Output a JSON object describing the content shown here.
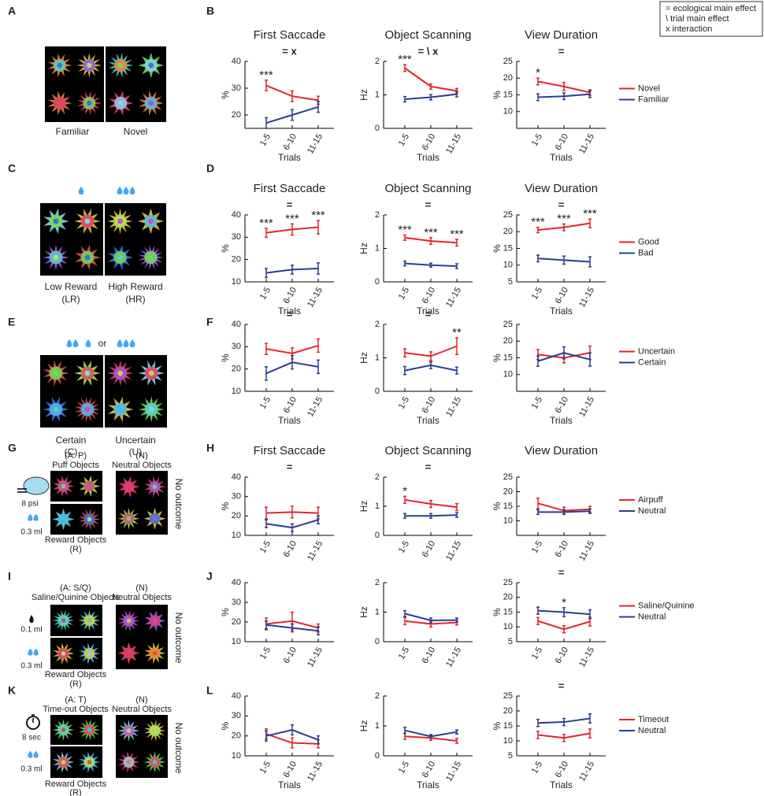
{
  "legend_box": [
    "= ecological main effect",
    "\\ trial main effect",
    "x interaction"
  ],
  "chart_letters": [
    "B",
    "D",
    "F",
    "H",
    "J",
    "L"
  ],
  "left_panels": [
    {
      "letter": "A",
      "labels": [
        "Familiar",
        "Novel"
      ]
    },
    {
      "letter": "C",
      "labels": [
        "Low Reward",
        "(LR)",
        "High Reward",
        "(HR)"
      ]
    },
    {
      "letter": "E",
      "labels": [
        "Certain",
        "(C)",
        "or",
        "Uncertain",
        "(U)"
      ]
    },
    {
      "letter": "G",
      "labels": [
        "(A: P)",
        "Puff Objects",
        "(N)",
        "Neutral Objects",
        "8 psi",
        "0.3 ml",
        "Reward Objects",
        "(R)",
        "No outcome"
      ]
    },
    {
      "letter": "I",
      "labels": [
        "(A: S/Q)",
        "Saline/Quinine Objects",
        "(N)",
        "Neutral Objects",
        "0.1 ml",
        "0.3 ml",
        "Reward Objects",
        "(R)",
        "No outcome"
      ]
    },
    {
      "letter": "K",
      "labels": [
        "(A: T)",
        "Time-out Objects",
        "(N)",
        "Neutral Objects",
        "8 sec",
        "0.3 ml",
        "Reward Objects",
        "(R)",
        "No outcome"
      ]
    }
  ],
  "chart_data": [
    {
      "type": "line",
      "title": "First Saccade",
      "annotation": "= x",
      "xlabel": "Trials",
      "ylabel": "%",
      "categories": [
        "1-5",
        "6-10",
        "11-15"
      ],
      "ylim": [
        15,
        40
      ],
      "yticks": [
        20,
        30,
        40
      ],
      "stars": [
        "***",
        null,
        null
      ],
      "series": [
        {
          "color": "#e3262b",
          "values": [
            31,
            27,
            25.5
          ],
          "errors": [
            2,
            2,
            1.5
          ]
        },
        {
          "color": "#2b3d91",
          "values": [
            17,
            20,
            23
          ],
          "errors": [
            2,
            2,
            2
          ]
        }
      ]
    },
    {
      "type": "line",
      "title": "Object Scanning",
      "annotation": "= \\ x",
      "xlabel": "Trials",
      "ylabel": "Hz",
      "categories": [
        "1-5",
        "6-10",
        "11-15"
      ],
      "ylim": [
        0,
        2
      ],
      "yticks": [
        0,
        1,
        2
      ],
      "stars": [
        "***",
        null,
        null
      ],
      "series": [
        {
          "color": "#e3262b",
          "values": [
            1.8,
            1.25,
            1.12
          ],
          "errors": [
            0.1,
            0.08,
            0.07
          ]
        },
        {
          "color": "#2b3d91",
          "values": [
            0.87,
            0.93,
            1.02
          ],
          "errors": [
            0.08,
            0.08,
            0.08
          ]
        }
      ]
    },
    {
      "type": "line",
      "title": "View Duration",
      "annotation": "=",
      "xlabel": "Trials",
      "ylabel": "%",
      "categories": [
        "1-5",
        "6-10",
        "11-15"
      ],
      "ylim": [
        5,
        25
      ],
      "yticks": [
        10,
        15,
        20,
        25
      ],
      "stars": [
        "*",
        null,
        null
      ],
      "series": [
        {
          "name": "Novel",
          "color": "#e3262b",
          "values": [
            19,
            17.5,
            15.7
          ],
          "errors": [
            1,
            1.2,
            0.8
          ]
        },
        {
          "name": "Familiar",
          "color": "#2b3d91",
          "values": [
            14.3,
            14.6,
            15.2
          ],
          "errors": [
            1,
            1,
            1
          ]
        }
      ]
    },
    {
      "type": "line",
      "title": "First Saccade",
      "annotation": "=",
      "xlabel": "Trials",
      "ylabel": "%",
      "categories": [
        "1-5",
        "6-10",
        "11-15"
      ],
      "ylim": [
        10,
        40
      ],
      "yticks": [
        10,
        20,
        30,
        40
      ],
      "stars": [
        "***",
        "***",
        "***"
      ],
      "series": [
        {
          "color": "#e3262b",
          "values": [
            32,
            33.5,
            34.5
          ],
          "errors": [
            2,
            2.5,
            3
          ]
        },
        {
          "color": "#2b3d91",
          "values": [
            14,
            15.5,
            16
          ],
          "errors": [
            2,
            2,
            2.5
          ]
        }
      ]
    },
    {
      "type": "line",
      "title": "Object Scanning",
      "annotation": "=",
      "xlabel": "Trials",
      "ylabel": "Hz",
      "categories": [
        "1-5",
        "6-10",
        "11-15"
      ],
      "ylim": [
        0,
        2
      ],
      "yticks": [
        0,
        1,
        2
      ],
      "stars": [
        "***",
        "***",
        "***"
      ],
      "series": [
        {
          "color": "#e3262b",
          "values": [
            1.32,
            1.22,
            1.17
          ],
          "errors": [
            0.08,
            0.1,
            0.1
          ]
        },
        {
          "color": "#2b3d91",
          "values": [
            0.55,
            0.5,
            0.47
          ],
          "errors": [
            0.07,
            0.06,
            0.07
          ]
        }
      ]
    },
    {
      "type": "line",
      "title": "View Duration",
      "annotation": "=",
      "xlabel": "Trials",
      "ylabel": "%",
      "categories": [
        "1-5",
        "6-10",
        "11-15"
      ],
      "ylim": [
        5,
        25
      ],
      "yticks": [
        5,
        10,
        15,
        20,
        25
      ],
      "stars": [
        "***",
        "***",
        "***"
      ],
      "series": [
        {
          "name": "Good",
          "color": "#e3262b",
          "values": [
            20.5,
            21.3,
            22.5
          ],
          "errors": [
            0.8,
            1,
            1.3
          ]
        },
        {
          "name": "Bad",
          "color": "#2b3d91",
          "values": [
            12,
            11.5,
            11
          ],
          "errors": [
            1,
            1.2,
            1.5
          ]
        }
      ]
    },
    {
      "type": "line",
      "annotation": "=",
      "xlabel": "Trials",
      "ylabel": "%",
      "categories": [
        "1-5",
        "6-10",
        "11-15"
      ],
      "ylim": [
        10,
        40
      ],
      "yticks": [
        10,
        20,
        30,
        40
      ],
      "stars": [
        null,
        null,
        null
      ],
      "series": [
        {
          "color": "#e3262b",
          "values": [
            29,
            27,
            30.5
          ],
          "errors": [
            2.5,
            2.5,
            3
          ]
        },
        {
          "color": "#2b3d91",
          "values": [
            18,
            23,
            21
          ],
          "errors": [
            3,
            3,
            3
          ]
        }
      ]
    },
    {
      "type": "line",
      "annotation": "=",
      "xlabel": "Trials",
      "ylabel": "Hz",
      "categories": [
        "1-5",
        "6-10",
        "11-15"
      ],
      "ylim": [
        0,
        2
      ],
      "yticks": [
        0,
        1,
        2
      ],
      "stars": [
        null,
        null,
        "**"
      ],
      "series": [
        {
          "color": "#e3262b",
          "values": [
            1.15,
            1.05,
            1.35
          ],
          "errors": [
            0.12,
            0.13,
            0.25
          ]
        },
        {
          "color": "#2b3d91",
          "values": [
            0.62,
            0.78,
            0.62
          ],
          "errors": [
            0.12,
            0.1,
            0.1
          ]
        }
      ]
    },
    {
      "type": "line",
      "xlabel": "Trials",
      "ylabel": "%",
      "categories": [
        "1-5",
        "6-10",
        "11-15"
      ],
      "ylim": [
        5,
        25
      ],
      "yticks": [
        10,
        15,
        20,
        25
      ],
      "stars": [
        null,
        null,
        null
      ],
      "series": [
        {
          "name": "Uncertain",
          "color": "#e3262b",
          "values": [
            16,
            15,
            16.5
          ],
          "errors": [
            1.5,
            1.5,
            2
          ]
        },
        {
          "name": "Certain",
          "color": "#2b3d91",
          "values": [
            14,
            16.5,
            14.5
          ],
          "errors": [
            1.5,
            1.8,
            2
          ]
        }
      ]
    },
    {
      "type": "line",
      "title": "First Saccade",
      "annotation": "=",
      "ylabel": "%",
      "categories": [
        "1-5",
        "6-10",
        "11-15"
      ],
      "ylim": [
        10,
        40
      ],
      "yticks": [
        10,
        20,
        30,
        40
      ],
      "stars": [
        null,
        null,
        null
      ],
      "series": [
        {
          "color": "#e3262b",
          "values": [
            21.5,
            22,
            21.5
          ],
          "errors": [
            3,
            3,
            3
          ]
        },
        {
          "color": "#2b3d91",
          "values": [
            16,
            14,
            18
          ],
          "errors": [
            2,
            2,
            2
          ]
        }
      ]
    },
    {
      "type": "line",
      "title": "Object Scanning",
      "annotation": "=",
      "ylabel": "Hz",
      "categories": [
        "1-5",
        "6-10",
        "11-15"
      ],
      "ylim": [
        0,
        2
      ],
      "yticks": [
        0,
        1,
        2
      ],
      "stars": [
        "*",
        null,
        null
      ],
      "series": [
        {
          "color": "#e3262b",
          "values": [
            1.22,
            1.08,
            0.97
          ],
          "errors": [
            0.12,
            0.12,
            0.12
          ]
        },
        {
          "color": "#2b3d91",
          "values": [
            0.67,
            0.67,
            0.7
          ],
          "errors": [
            0.08,
            0.08,
            0.08
          ]
        }
      ]
    },
    {
      "type": "line",
      "title": "View Duration",
      "ylabel": "%",
      "categories": [
        "1-5",
        "6-10",
        "11-15"
      ],
      "ylim": [
        5,
        25
      ],
      "yticks": [
        10,
        15,
        20,
        25
      ],
      "stars": [
        null,
        null,
        null
      ],
      "series": [
        {
          "name": "Airpuff",
          "color": "#e3262b",
          "values": [
            16,
            13.5,
            14
          ],
          "errors": [
            1.8,
            1.2,
            1
          ]
        },
        {
          "name": "Neutral",
          "color": "#2b3d91",
          "values": [
            13,
            13,
            13.3
          ],
          "errors": [
            0.8,
            0.8,
            0.8
          ]
        }
      ]
    },
    {
      "type": "line",
      "ylabel": "%",
      "categories": [
        "1-5",
        "6-10",
        "11-15"
      ],
      "ylim": [
        10,
        40
      ],
      "yticks": [
        10,
        20,
        30,
        40
      ],
      "stars": [
        null,
        null,
        null
      ],
      "series": [
        {
          "color": "#e3262b",
          "values": [
            19,
            20.5,
            17
          ],
          "errors": [
            3,
            4.5,
            2
          ]
        },
        {
          "color": "#2b3d91",
          "values": [
            18.5,
            17,
            15.5
          ],
          "errors": [
            2,
            2,
            2
          ]
        }
      ]
    },
    {
      "type": "line",
      "ylabel": "Hz",
      "categories": [
        "1-5",
        "6-10",
        "11-15"
      ],
      "ylim": [
        0,
        2
      ],
      "yticks": [
        0,
        1,
        2
      ],
      "stars": [
        null,
        null,
        null
      ],
      "series": [
        {
          "color": "#e3262b",
          "values": [
            0.7,
            0.6,
            0.65
          ],
          "errors": [
            0.12,
            0.1,
            0.08
          ]
        },
        {
          "color": "#2b3d91",
          "values": [
            0.95,
            0.72,
            0.73
          ],
          "errors": [
            0.1,
            0.08,
            0.07
          ]
        }
      ]
    },
    {
      "type": "line",
      "annotation": "=",
      "ylabel": "%",
      "categories": [
        "1-5",
        "6-10",
        "11-15"
      ],
      "ylim": [
        5,
        25
      ],
      "yticks": [
        5,
        10,
        15,
        20,
        25
      ],
      "stars": [
        null,
        "*",
        null
      ],
      "series": [
        {
          "name": "Saline/Quinine",
          "color": "#e3262b",
          "values": [
            12,
            9.2,
            11.8
          ],
          "errors": [
            1.2,
            1.2,
            1.5
          ]
        },
        {
          "name": "Neutral",
          "color": "#2b3d91",
          "values": [
            15.5,
            15,
            14.3
          ],
          "errors": [
            1.2,
            1.5,
            1.5
          ]
        }
      ]
    },
    {
      "type": "line",
      "xlabel": "Trials",
      "ylabel": "%",
      "categories": [
        "1-5",
        "6-10",
        "11-15"
      ],
      "ylim": [
        10,
        40
      ],
      "yticks": [
        10,
        20,
        30,
        40
      ],
      "stars": [
        null,
        null,
        null
      ],
      "series": [
        {
          "color": "#e3262b",
          "values": [
            21,
            16.5,
            16
          ],
          "errors": [
            2.5,
            2.5,
            2
          ]
        },
        {
          "color": "#2b3d91",
          "values": [
            20,
            23,
            18
          ],
          "errors": [
            2.5,
            2.5,
            2
          ]
        }
      ]
    },
    {
      "type": "line",
      "xlabel": "Trials",
      "ylabel": "Hz",
      "categories": [
        "1-5",
        "6-10",
        "11-15"
      ],
      "ylim": [
        0,
        2
      ],
      "yticks": [
        0,
        1,
        2
      ],
      "stars": [
        null,
        null,
        null
      ],
      "series": [
        {
          "color": "#e3262b",
          "values": [
            0.65,
            0.6,
            0.5
          ],
          "errors": [
            0.1,
            0.08,
            0.08
          ]
        },
        {
          "color": "#2b3d91",
          "values": [
            0.85,
            0.65,
            0.8
          ],
          "errors": [
            0.1,
            0.06,
            0.07
          ]
        }
      ]
    },
    {
      "type": "line",
      "annotation": "=",
      "xlabel": "Trials",
      "ylabel": "%",
      "categories": [
        "1-5",
        "6-10",
        "11-15"
      ],
      "ylim": [
        5,
        25
      ],
      "yticks": [
        5,
        10,
        15,
        20,
        25
      ],
      "stars": [
        null,
        null,
        null
      ],
      "series": [
        {
          "name": "Timeout",
          "color": "#e3262b",
          "values": [
            12,
            11,
            12.5
          ],
          "errors": [
            1.2,
            1.2,
            1.5
          ]
        },
        {
          "name": "Neutral",
          "color": "#2b3d91",
          "values": [
            16,
            16.3,
            17.5
          ],
          "errors": [
            1.2,
            1.2,
            1.5
          ]
        }
      ]
    }
  ]
}
